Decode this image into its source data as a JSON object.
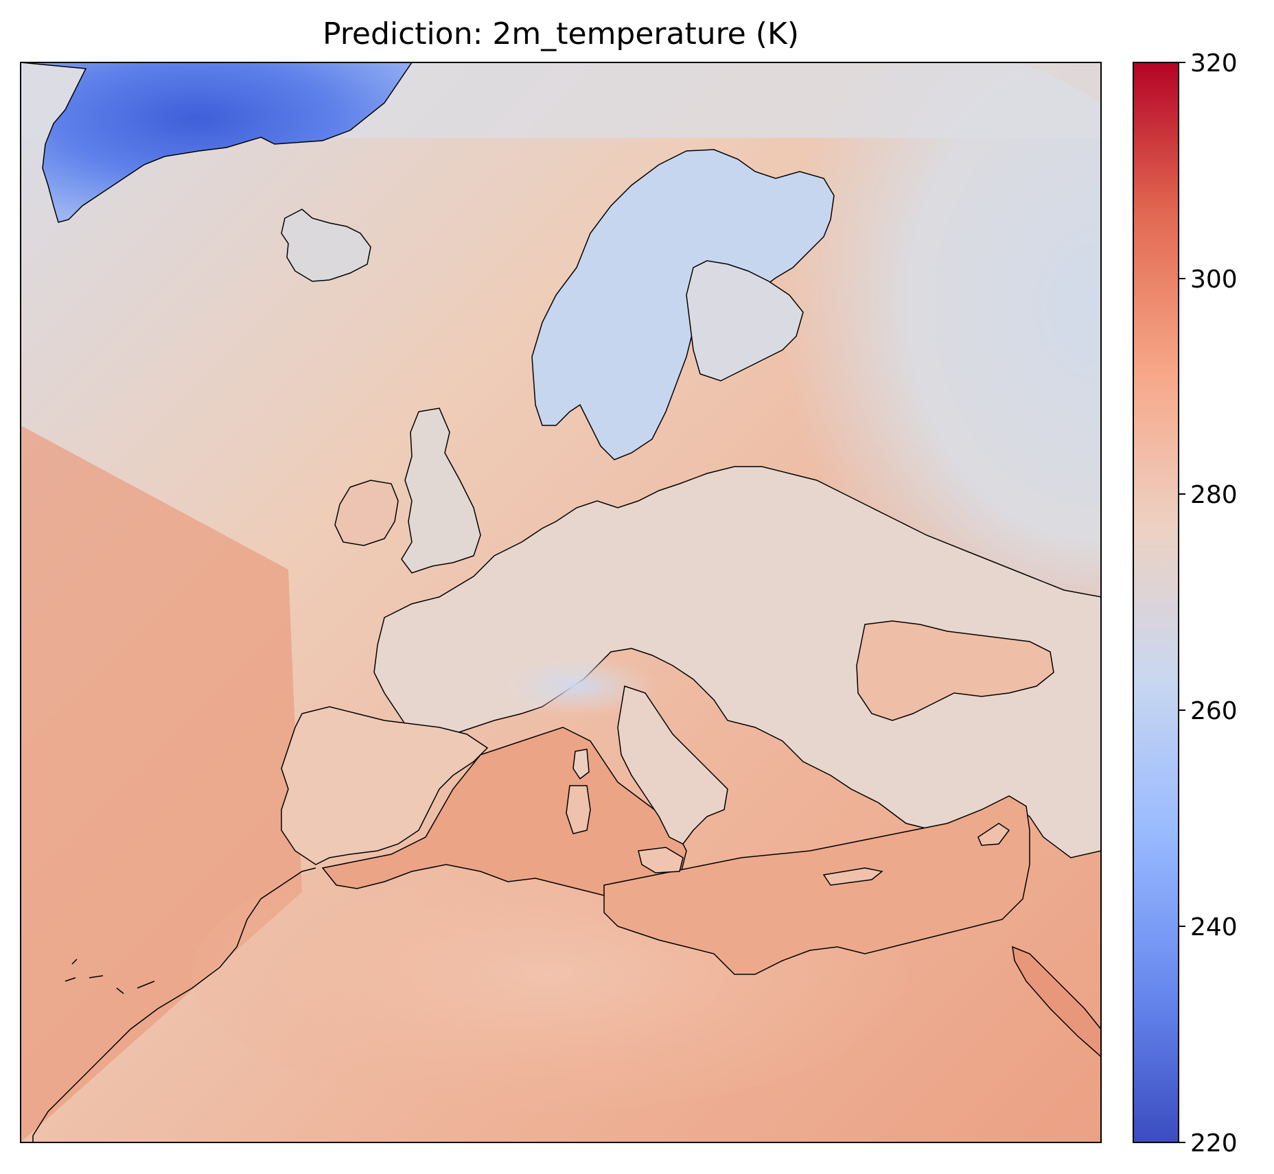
{
  "title": "Prediction: 2m_temperature (K)",
  "colorbar": {
    "colormap": "coolwarm",
    "min": 220,
    "max": 320,
    "ticks": [
      "220",
      "240",
      "260",
      "280",
      "300",
      "320"
    ],
    "colors": [
      "#3b4cc0",
      "#6788ee",
      "#9abbff",
      "#c9d7f0",
      "#edd1c2",
      "#f7a889",
      "#e26952",
      "#b40426"
    ]
  },
  "map": {
    "region": "Europe and North Africa",
    "colors": {
      "cold_ice": "#4a6fe3",
      "cool_land": "#c8d8f2",
      "neutral": "#dedcdb",
      "mild": "#f0c8b2",
      "warm": "#eeb196",
      "hot_ocean": "#e99a7c",
      "coastline": "#000000"
    }
  }
}
